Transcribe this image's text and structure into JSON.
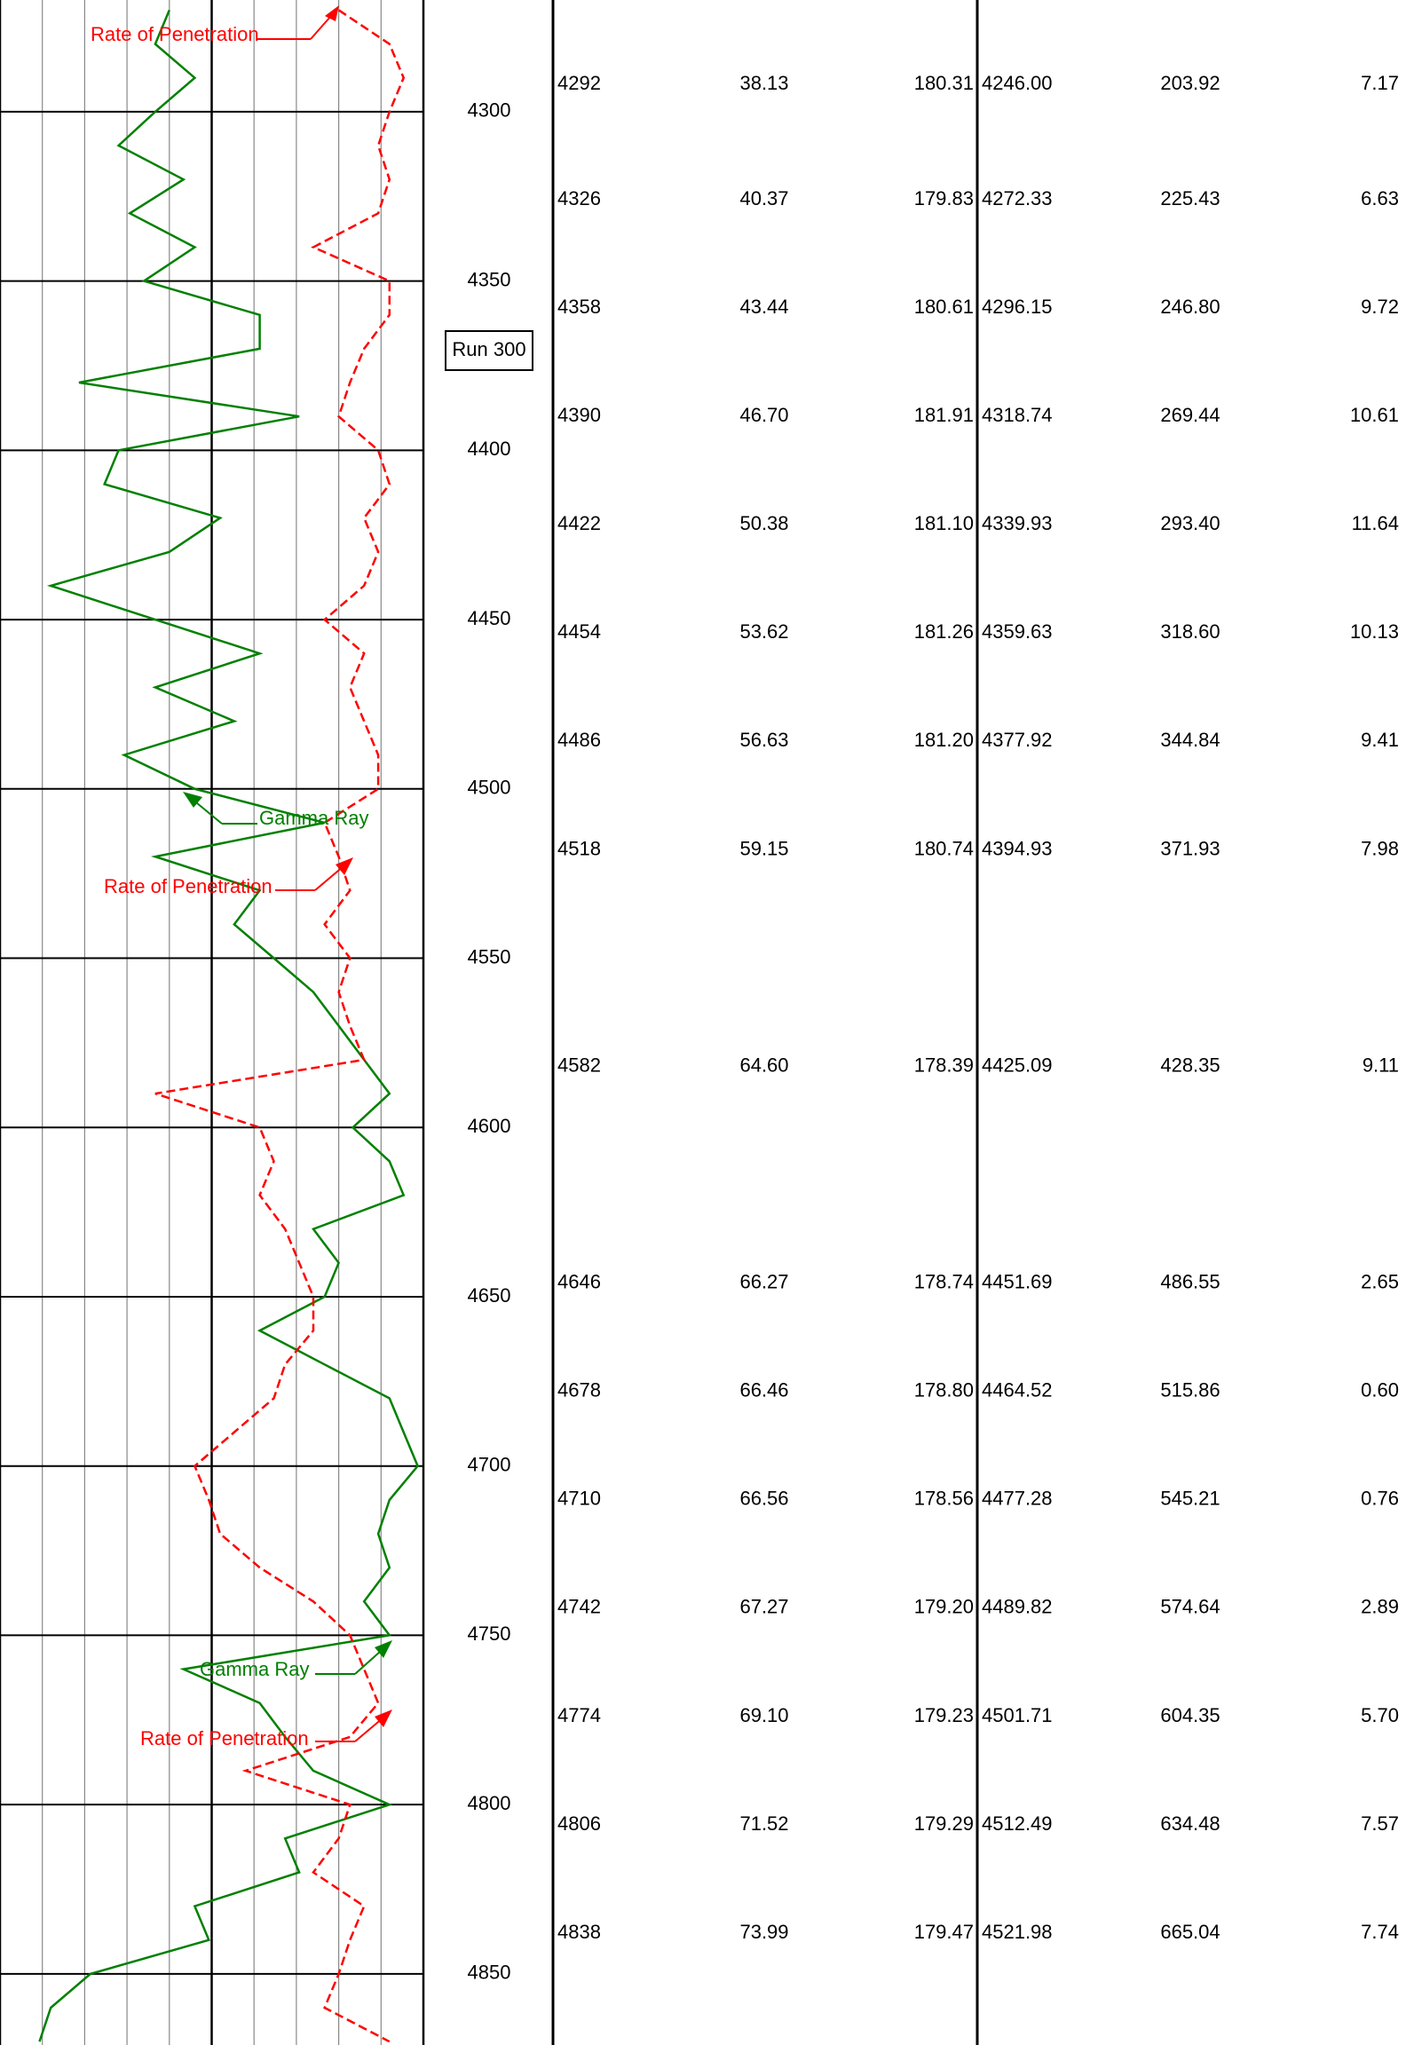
{
  "chart_data": {
    "type": "well-log",
    "ylim": [
      4267,
      4871
    ],
    "yticks": [
      4300,
      4350,
      4400,
      4450,
      4500,
      4550,
      4600,
      4650,
      4700,
      4750,
      4800,
      4850
    ],
    "xlim": [
      0,
      150
    ],
    "depths": [
      4270,
      4280,
      4290,
      4300,
      4310,
      4320,
      4330,
      4340,
      4350,
      4360,
      4370,
      4380,
      4390,
      4400,
      4410,
      4420,
      4430,
      4440,
      4450,
      4460,
      4470,
      4480,
      4490,
      4500,
      4510,
      4520,
      4530,
      4540,
      4550,
      4560,
      4570,
      4580,
      4590,
      4600,
      4610,
      4620,
      4630,
      4640,
      4650,
      4660,
      4670,
      4680,
      4690,
      4700,
      4710,
      4720,
      4730,
      4740,
      4750,
      4760,
      4770,
      4780,
      4790,
      4800,
      4810,
      4820,
      4830,
      4840,
      4850,
      4860,
      4870
    ],
    "series": [
      {
        "name": "Gamma Ray",
        "color": "#008000",
        "values": [
          60,
          55,
          69,
          55,
          42,
          65,
          46,
          69,
          51,
          92,
          92,
          28,
          106,
          42,
          37,
          78,
          60,
          18,
          55,
          92,
          55,
          83,
          44,
          69,
          115,
          55,
          92,
          83,
          97,
          111,
          120,
          129,
          138,
          125,
          138,
          143,
          111,
          120,
          115,
          92,
          115,
          138,
          143,
          148,
          138,
          134,
          138,
          129,
          138,
          65,
          92,
          101,
          111,
          138,
          101,
          106,
          69,
          74,
          32,
          18,
          14
        ]
      },
      {
        "name": "Rate of Penetration",
        "color": "#ff0000",
        "values": [
          120,
          138,
          143,
          138,
          134,
          138,
          134,
          111,
          138,
          138,
          129,
          124,
          120,
          134,
          138,
          129,
          134,
          129,
          115,
          129,
          124,
          129,
          134,
          134,
          115,
          120,
          124,
          115,
          124,
          120,
          124,
          129,
          55,
          92,
          97,
          92,
          101,
          106,
          111,
          111,
          101,
          97,
          83,
          69,
          74,
          78,
          92,
          111,
          124,
          129,
          134,
          124,
          87,
          124,
          120,
          111,
          129,
          124,
          120,
          115,
          138
        ]
      }
    ],
    "run_label": "Run 300",
    "survey": [
      [
        4292,
        "38.13",
        "180.31",
        "4246.00",
        "203.92",
        "7.17"
      ],
      [
        4326,
        "40.37",
        "179.83",
        "4272.33",
        "225.43",
        "6.63"
      ],
      [
        4358,
        "43.44",
        "180.61",
        "4296.15",
        "246.80",
        "9.72"
      ],
      [
        4390,
        "46.70",
        "181.91",
        "4318.74",
        "269.44",
        "10.61"
      ],
      [
        4422,
        "50.38",
        "181.10",
        "4339.93",
        "293.40",
        "11.64"
      ],
      [
        4454,
        "53.62",
        "181.26",
        "4359.63",
        "318.60",
        "10.13"
      ],
      [
        4486,
        "56.63",
        "181.20",
        "4377.92",
        "344.84",
        "9.41"
      ],
      [
        4518,
        "59.15",
        "180.74",
        "4394.93",
        "371.93",
        "7.98"
      ],
      [
        4582,
        "64.60",
        "178.39",
        "4425.09",
        "428.35",
        "9.11"
      ],
      [
        4646,
        "66.27",
        "178.74",
        "4451.69",
        "486.55",
        "2.65"
      ],
      [
        4678,
        "66.46",
        "178.80",
        "4464.52",
        "515.86",
        "0.60"
      ],
      [
        4710,
        "66.56",
        "178.56",
        "4477.28",
        "545.21",
        "0.76"
      ],
      [
        4742,
        "67.27",
        "179.20",
        "4489.82",
        "574.64",
        "2.89"
      ],
      [
        4774,
        "69.10",
        "179.23",
        "4501.71",
        "604.35",
        "5.70"
      ],
      [
        4806,
        "71.52",
        "179.29",
        "4512.49",
        "634.48",
        "7.57"
      ],
      [
        4838,
        "73.99",
        "179.47",
        "4521.98",
        "665.04",
        "7.74"
      ]
    ]
  }
}
